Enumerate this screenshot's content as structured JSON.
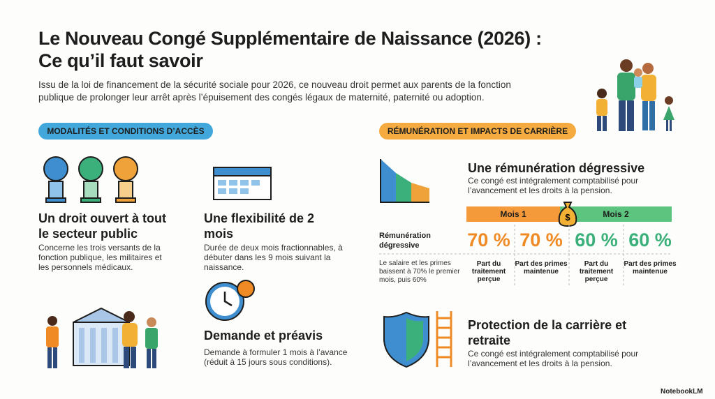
{
  "header": {
    "title_lines": [
      "Le Nouveau Congé Supplémentaire de Naissance (2026) :",
      "Ce qu’il faut savoir"
    ],
    "intro": "Issu de la loi de financement de la sécurité sociale pour 2026, ce nouveau droit permet aux parents de la fonction publique de prolonger leur arrêt après l’épuisement des congés légaux de maternité, paternité ou adoption."
  },
  "left": {
    "badge": "MODALITÉS ET CONDITIONS D’ACCÈS",
    "cards": [
      {
        "title": "Un droit ouvert à tout le secteur public",
        "text": "Concerne les trois versants de la fonction publique, les militaires et les personnels médicaux."
      },
      {
        "title": "Une flexibilité de 2 mois",
        "text": "Durée de deux mois fractionnables, à débuter dans les 9 mois suivant la naissance."
      },
      {
        "title": "Demande et préavis",
        "text": "Demande à formuler 1 mois à l’avance (réduit à 15 jours sous conditions)."
      }
    ]
  },
  "right": {
    "badge": "RÉMUNÉRATION ET IMPACTS DE CARRIÈRE",
    "remuneration": {
      "title": "Une rémunération dégressive",
      "text": "Ce congé est intégralement comptabilisé pour l’avancement et les droits à la pension.",
      "table": {
        "months": [
          "Mois 1",
          "Mois 2"
        ],
        "row_label": "Rémunération dégressive",
        "values": [
          "70 %",
          "70 %",
          "60 %",
          "60 %"
        ],
        "note": "Le salaire et les primes baissent à 70% le premier mois, puis 60%",
        "column_labels": [
          "Part du traitement perçue",
          "Part des primes maintenue",
          "Part du traitement perçue",
          "Part des primes maintenue"
        ]
      }
    },
    "career": {
      "title": "Protection de la carrière et retraite",
      "text": "Ce congé est intégralement comptabilisé pour l’avancement et les droits à la pension."
    }
  },
  "footer": {
    "brand": "NotebookLM"
  }
}
